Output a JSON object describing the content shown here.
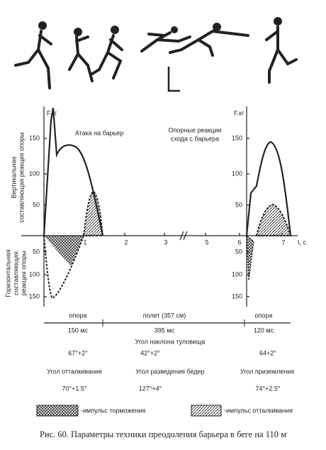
{
  "plot": {
    "y_unit": "F.кг",
    "y_unit_right": "F.кг",
    "x_unit": "t, c",
    "upper_ticks": [
      "150",
      "100",
      "50"
    ],
    "lower_ticks": [
      "50",
      "100",
      "150"
    ],
    "x_ticks": [
      "1",
      "2",
      "3",
      "5",
      "6",
      "7"
    ],
    "upper_axis_label": [
      "Вертикальная",
      "составляющая реакция опоры"
    ],
    "lower_axis_label": [
      "Горизонтальная",
      "составляющая",
      "реакция опоры"
    ],
    "left_title": "Атака на барьер",
    "right_title": [
      "Опорные реакции",
      "схода с барьера"
    ]
  },
  "table": {
    "phases": [
      "опора",
      "полет (357 см)",
      "опора"
    ],
    "durations": [
      "150 мс",
      "395 мс",
      "120 мс"
    ],
    "trunk_title": "Угол наклона туловища",
    "trunk": [
      "67°+2°",
      "42°+2°",
      "64+2°"
    ],
    "angle_titles": [
      "Угол отталкивания",
      "Угол разведения бедер",
      "Угол приземления"
    ],
    "angles": [
      "70°+1.5°",
      "127°+4°",
      "74°+2.5°"
    ]
  },
  "legend": [
    "-импульс торможения",
    "-импульс отталкивания"
  ],
  "caption": "Рис. 60. Параметры техники преодоления барьера в беге на 110 м"
}
